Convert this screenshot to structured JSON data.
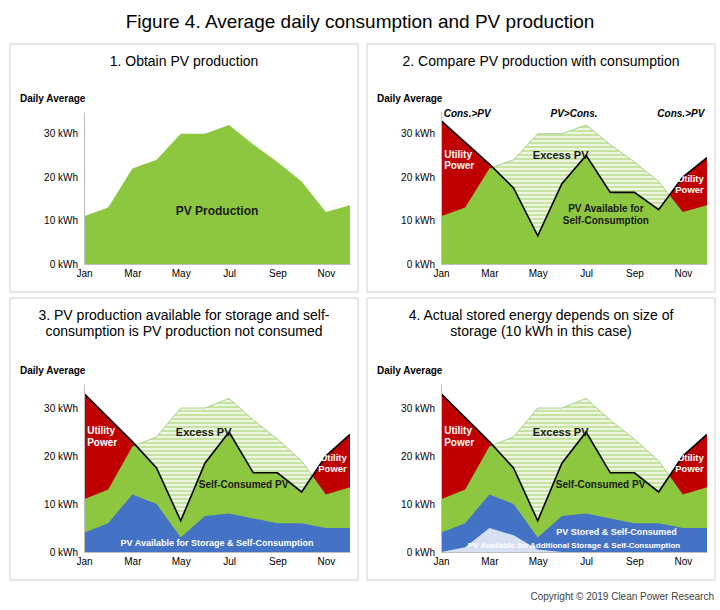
{
  "title": "Figure 4. Average daily consumption and PV production",
  "source": "Copyright © 2019 Clean Power Research",
  "chart_data": [
    {
      "type": "area",
      "title": "1. Obtain PV production",
      "ylabel": "Daily Average",
      "categories": [
        "Jan",
        null,
        "Mar",
        null,
        "May",
        null,
        "Jul",
        null,
        "Sep",
        null,
        "Nov",
        null
      ],
      "ylim": [
        0,
        35
      ],
      "yticks": [
        {
          "value": 0,
          "label": "0 kWh"
        },
        {
          "value": 10,
          "label": "10 kWh"
        },
        {
          "value": 20,
          "label": "20 kWh"
        },
        {
          "value": 30,
          "label": "30 kWh"
        }
      ],
      "series": [
        {
          "name": "PV Production",
          "type": "area",
          "color": "#8dc63f",
          "values": [
            11,
            13,
            22,
            24,
            30,
            30,
            32,
            27.5,
            23.5,
            19,
            12,
            13.5
          ]
        }
      ]
    },
    {
      "type": "area",
      "title": "2. Compare PV production with consumption",
      "ylabel": "Daily Average",
      "categories": [
        "Jan",
        null,
        "Mar",
        null,
        "May",
        null,
        "Jul",
        null,
        "Sep",
        null,
        "Nov",
        null
      ],
      "ylim": [
        0,
        35
      ],
      "yticks": [
        {
          "value": 0,
          "label": "0 kWh"
        },
        {
          "value": 10,
          "label": "10 kWh"
        },
        {
          "value": 20,
          "label": "20 kWh"
        },
        {
          "value": 30,
          "label": "30 kWh"
        }
      ],
      "series": [
        {
          "type": "area",
          "color": "#8dc63f",
          "values": [
            11,
            13,
            22,
            24,
            30,
            30,
            32,
            27.5,
            23.5,
            19,
            12,
            13.5
          ]
        },
        {
          "type": "line",
          "color": "#000000",
          "values": [
            33,
            28,
            23,
            17.5,
            6.5,
            18.5,
            25,
            16.5,
            16.5,
            12.5,
            20,
            24.5
          ]
        }
      ],
      "annotations": [
        "Cons.>PV",
        "PV>Cons.",
        "Cons.>PV",
        "Utility\nPower",
        "Excess PV",
        "PV Available for\nSelf-Consumption",
        "Utility\nPower"
      ]
    },
    {
      "type": "area",
      "title": "3. PV production available for storage and self-\nconsumption is PV production not consumed",
      "ylabel": "Daily Average",
      "categories": [
        "Jan",
        null,
        "Mar",
        null,
        "May",
        null,
        "Jul",
        null,
        "Sep",
        null,
        "Nov",
        null
      ],
      "ylim": [
        0,
        35
      ],
      "yticks": [
        {
          "value": 0,
          "label": "0 kWh"
        },
        {
          "value": 10,
          "label": "10 kWh"
        },
        {
          "value": 20,
          "label": "20 kWh"
        },
        {
          "value": 30,
          "label": "30 kWh"
        }
      ],
      "series": [
        {
          "type": "area",
          "color": "#8dc63f",
          "values": [
            11,
            13,
            22,
            24,
            30,
            30,
            32,
            27.5,
            23.5,
            19,
            12,
            13.5
          ]
        },
        {
          "type": "line",
          "color": "#000000",
          "values": [
            33,
            28,
            23,
            17.5,
            6.5,
            18.5,
            25,
            16.5,
            16.5,
            12.5,
            20,
            24.5
          ]
        },
        {
          "name": "PV Available for Storage & Self-Consumption",
          "type": "area",
          "color": "#4472c4",
          "values": [
            4,
            6,
            12,
            10,
            3,
            7.5,
            8,
            7,
            6,
            6,
            5,
            5
          ]
        }
      ],
      "annotations": [
        "Utility\nPower",
        "Excess PV",
        "Self-Consumed PV",
        "Utility\nPower"
      ]
    },
    {
      "type": "area",
      "title": "4. Actual stored energy depends on size of\nstorage (10 kWh in this case)",
      "ylabel": "Daily Average",
      "categories": [
        "Jan",
        null,
        "Mar",
        null,
        "May",
        null,
        "Jul",
        null,
        "Sep",
        null,
        "Nov",
        null
      ],
      "ylim": [
        0,
        35
      ],
      "yticks": [
        {
          "value": 0,
          "label": "0 kWh"
        },
        {
          "value": 10,
          "label": "10 kWh"
        },
        {
          "value": 20,
          "label": "20 kWh"
        },
        {
          "value": 30,
          "label": "30 kWh"
        }
      ],
      "series": [
        {
          "type": "area",
          "color": "#8dc63f",
          "values": [
            11,
            13,
            22,
            24,
            30,
            30,
            32,
            27.5,
            23.5,
            19,
            12,
            13.5
          ]
        },
        {
          "type": "line",
          "color": "#000000",
          "values": [
            33,
            28,
            23,
            17.5,
            6.5,
            18.5,
            25,
            16.5,
            16.5,
            12.5,
            20,
            24.5
          ]
        },
        {
          "name": "PV Stored & Self-Consumed",
          "type": "area",
          "color": "#4472c4",
          "values": [
            4,
            6,
            12,
            10,
            3,
            7.5,
            8,
            7,
            6,
            6,
            5,
            5
          ]
        },
        {
          "name": "PV Available for Additional Storage & Self-Consumption",
          "type": "area",
          "color": "#d6e0f3",
          "values": [
            0,
            1,
            5,
            3.5,
            0.5,
            0,
            0,
            0,
            0,
            0,
            0,
            0
          ]
        }
      ],
      "annotations": [
        "Utility\nPower",
        "Excess PV",
        "Self-Consumed PV",
        "Utility\nPower"
      ]
    }
  ]
}
